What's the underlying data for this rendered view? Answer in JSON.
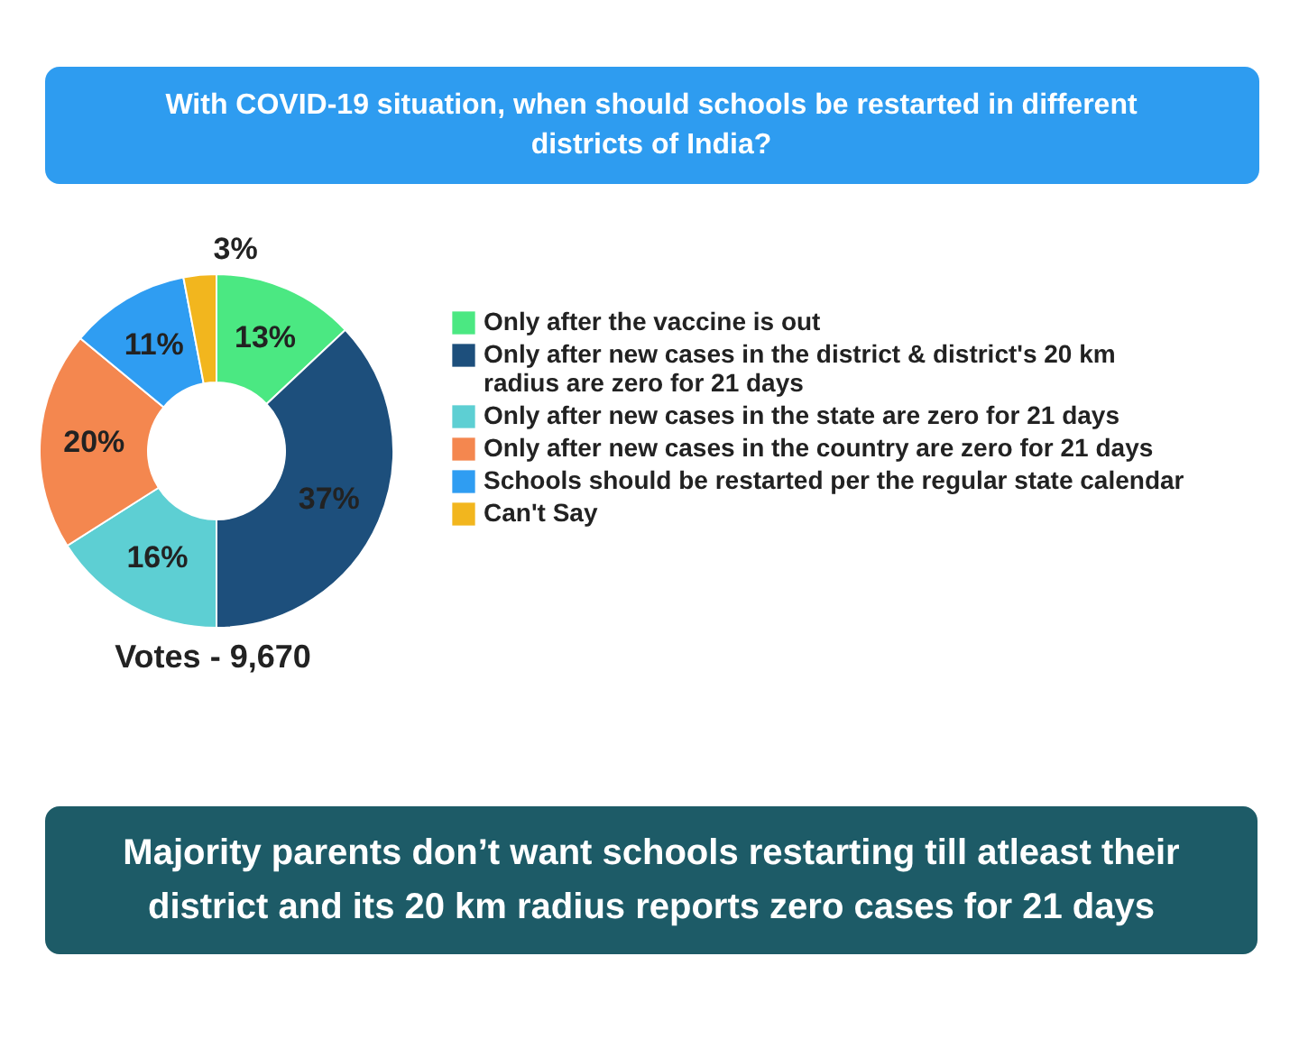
{
  "chart_data": {
    "type": "donut",
    "title": "With COVID-19 situation, when should schools be restarted in different districts of India?",
    "categories": [
      "Only after the vaccine is out",
      "Only after new cases in the district & district's 20 km radius are zero for 21 days",
      "Only after new cases in the state are zero for 21 days",
      "Only after new cases in the country are zero for 21 days",
      "Schools should be restarted per the regular state calendar",
      "Can't Say"
    ],
    "values": [
      13,
      37,
      16,
      20,
      11,
      3
    ],
    "colors": [
      "#4be882",
      "#1d4f7c",
      "#5dcfd3",
      "#f4874f",
      "#2f9df2",
      "#f2b61e"
    ],
    "value_labels": [
      "13%",
      "37%",
      "16%",
      "20%",
      "11%",
      "3%"
    ],
    "legend": "right",
    "annotations": [
      "Votes - 9,670",
      "Majority parents don’t want schools restarting till atleast their district and its 20 km radius reports zero cases for 21 days"
    ]
  }
}
